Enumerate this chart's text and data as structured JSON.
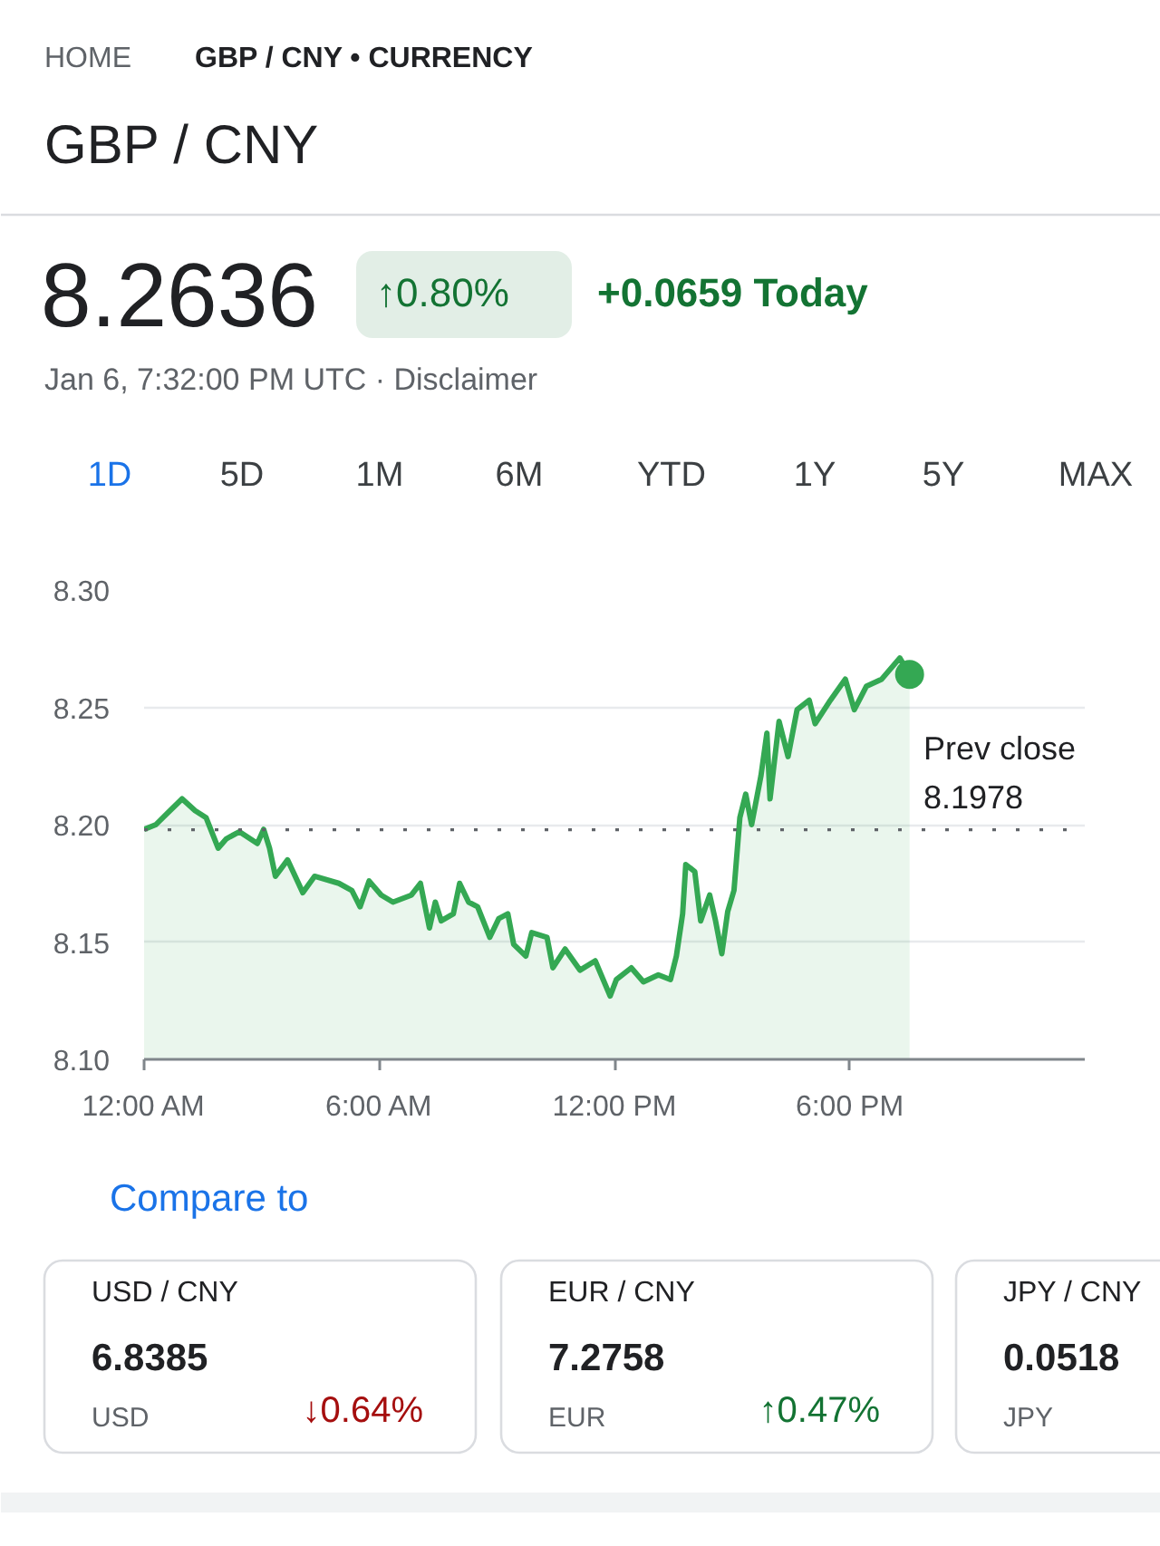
{
  "chart_data": [
    {
      "type": "other",
      "title": "GBP / CNY",
      "color": "#137333",
      "annotations": [
        "HOME",
        "GBP / CNY • CURRENCY",
        "8.2636",
        "↑0.80%",
        "+0.0659 Today",
        "Jan 6, 7:32:00 PM UTC · Disclaimer",
        "1D",
        "5D",
        "1M",
        "6M",
        "YTD",
        "1Y",
        "5Y",
        "MAX"
      ]
    },
    {
      "type": "area",
      "xlim": [
        0,
        24
      ],
      "xticks": [
        {
          "value": 0,
          "label": "12:00 AM"
        },
        {
          "value": 6,
          "label": "6:00 AM"
        },
        {
          "value": 12,
          "label": "12:00 PM"
        },
        {
          "value": 18,
          "label": "6:00 PM"
        }
      ],
      "ylim": [
        8.1,
        8.3
      ],
      "yticks": [
        {
          "value": 8.1,
          "label": "8.10"
        },
        8.15,
        {
          "value": 8.2,
          "label": "8.20"
        },
        8.25,
        {
          "value": 8.3,
          "label": "8.30"
        }
      ],
      "grid": "y",
      "ref_lines": [
        {
          "axis": "y",
          "value": 8.1978,
          "label": "Prev close\n8.1978",
          "color": "#5f6368",
          "line_style": "dotted"
        }
      ],
      "series": [
        {
          "color": "#34a853",
          "x": [
            0.0,
            0.3,
            0.6,
            0.97,
            1.3,
            1.58,
            1.89,
            2.1,
            2.43,
            2.89,
            3.05,
            3.2,
            3.35,
            3.66,
            4.05,
            4.35,
            4.97,
            5.3,
            5.51,
            5.74,
            6.05,
            6.35,
            6.82,
            7.05,
            7.28,
            7.43,
            7.58,
            7.89,
            8.05,
            8.28,
            8.51,
            8.82,
            9.05,
            9.28,
            9.43,
            9.74,
            9.89,
            10.28,
            10.43,
            10.74,
            11.12,
            11.51,
            11.89,
            12.05,
            12.43,
            12.74,
            13.12,
            13.43,
            13.58,
            13.74,
            13.82,
            14.05,
            14.2,
            14.43,
            14.58,
            14.74,
            14.89,
            15.05,
            15.2,
            15.35,
            15.5,
            15.74,
            15.89,
            15.97,
            16.2,
            16.43,
            16.66,
            16.97,
            17.12,
            17.51,
            17.89,
            18.12,
            18.43,
            18.82,
            19.28,
            19.53
          ],
          "values": [
            8.198,
            8.2,
            8.205,
            8.211,
            8.206,
            8.203,
            8.19,
            8.194,
            8.197,
            8.192,
            8.198,
            8.19,
            8.178,
            8.185,
            8.171,
            8.178,
            8.175,
            8.172,
            8.165,
            8.176,
            8.17,
            8.167,
            8.17,
            8.175,
            8.156,
            8.167,
            8.159,
            8.162,
            8.175,
            8.167,
            8.165,
            8.152,
            8.16,
            8.162,
            8.149,
            8.144,
            8.154,
            8.152,
            8.139,
            8.147,
            8.138,
            8.142,
            8.127,
            8.134,
            8.139,
            8.133,
            8.136,
            8.134,
            8.144,
            8.162,
            8.183,
            8.18,
            8.159,
            8.17,
            8.159,
            8.145,
            8.163,
            8.172,
            8.203,
            8.213,
            8.2,
            8.221,
            8.239,
            8.211,
            8.244,
            8.229,
            8.249,
            8.253,
            8.243,
            8.253,
            8.262,
            8.249,
            8.259,
            8.262,
            8.271,
            8.264
          ]
        },
        {
          "type": "scatter",
          "color": "#34a853",
          "x": [
            19.53
          ],
          "values": [
            8.264
          ]
        }
      ]
    },
    {
      "type": "other",
      "title": "Compare to",
      "categories": [
        "USD / CNY",
        "EUR / CNY",
        "JPY / CNY"
      ],
      "annotations": [
        "6.8385",
        "USD",
        "↓0.64%",
        "7.2758",
        "EUR",
        "↑0.47%",
        "0.0518",
        "JPY"
      ]
    }
  ]
}
